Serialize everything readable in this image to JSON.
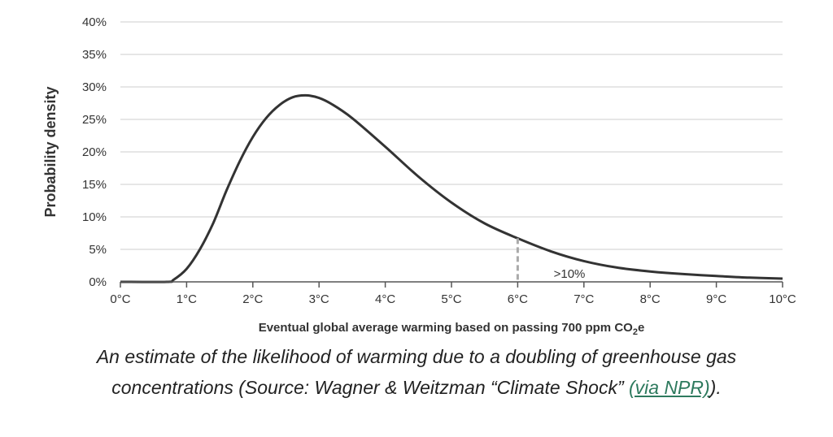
{
  "chart_data": {
    "type": "area",
    "title": "",
    "xlabel": "Eventual global average warming based on passing 700 ppm CO",
    "xlabel_sub": "2",
    "xlabel_suffix": "e",
    "ylabel": "Probability density",
    "xlim": [
      0,
      10
    ],
    "ylim": [
      0,
      40
    ],
    "x_ticks": [
      "0°C",
      "1°C",
      "2°C",
      "3°C",
      "4°C",
      "5°C",
      "6°C",
      "7°C",
      "8°C",
      "9°C",
      "10°C"
    ],
    "y_ticks": [
      "0%",
      "5%",
      "10%",
      "15%",
      "20%",
      "25%",
      "30%",
      "35%",
      "40%"
    ],
    "grid": true,
    "series": [
      {
        "x": [
          0,
          0.7,
          0.8,
          1.0,
          1.2,
          1.4,
          1.6,
          1.8,
          2.0,
          2.2,
          2.4,
          2.6,
          2.8,
          3.0,
          3.2,
          3.5,
          4.0,
          4.5,
          5.0,
          5.5,
          6.0,
          6.5,
          7.0,
          7.5,
          8.0,
          8.5,
          9.0,
          9.5,
          10.0
        ],
        "y": [
          0,
          0,
          0.3,
          2.0,
          5.0,
          9.0,
          14.0,
          18.5,
          22.3,
          25.2,
          27.2,
          28.4,
          28.7,
          28.3,
          27.3,
          25.2,
          20.8,
          16.2,
          12.2,
          9.0,
          6.7,
          4.7,
          3.2,
          2.2,
          1.6,
          1.2,
          0.9,
          0.65,
          0.5
        ]
      }
    ],
    "marker": {
      "x": 6,
      "y": 6.7
    },
    "annotation": ">10%",
    "colors": {
      "line": "#333333",
      "grid": "#cccccc",
      "marker": "#aaaaaa"
    }
  },
  "caption": {
    "line1": "An estimate of the likelihood of warming due to a doubling of greenhouse gas",
    "line2_pre": "concentrations (Source: Wagner & Weitzman “Climate Shock” ",
    "link_text": "(via NPR)",
    "line2_post": ").",
    "link_color": "#2e7a5e"
  }
}
